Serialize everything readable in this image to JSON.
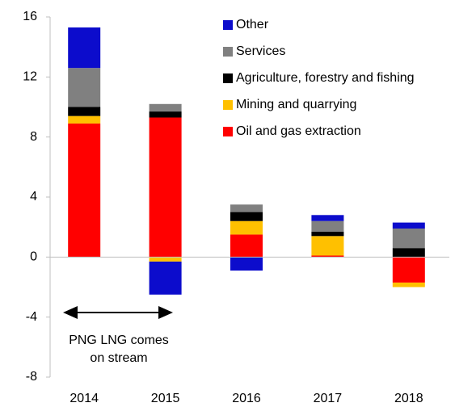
{
  "chart_data": {
    "type": "stacked_bar",
    "categories": [
      "2014",
      "2015",
      "2016",
      "2017",
      "2018"
    ],
    "series": [
      {
        "name": "Oil and gas extraction",
        "color": "#ff0000",
        "values": [
          8.9,
          9.3,
          1.5,
          0.1,
          -1.7
        ]
      },
      {
        "name": "Mining and quarrying",
        "color": "#ffc000",
        "values": [
          0.5,
          -0.3,
          0.9,
          1.3,
          -0.3
        ]
      },
      {
        "name": "Agriculture, forestry and fishing",
        "color": "#000000",
        "values": [
          0.6,
          0.4,
          0.6,
          0.3,
          0.6
        ]
      },
      {
        "name": "Services",
        "color": "#808080",
        "values": [
          2.6,
          0.5,
          0.5,
          0.7,
          1.3
        ]
      },
      {
        "name": "Other",
        "color": "#0c0ccc",
        "values": [
          2.7,
          -2.2,
          -0.9,
          0.4,
          0.4
        ]
      }
    ],
    "ylim": [
      -8,
      16
    ],
    "yticks": [
      -8,
      -4,
      0,
      4,
      8,
      12,
      16
    ],
    "annotation": [
      "PNG LNG comes",
      "on stream"
    ]
  }
}
